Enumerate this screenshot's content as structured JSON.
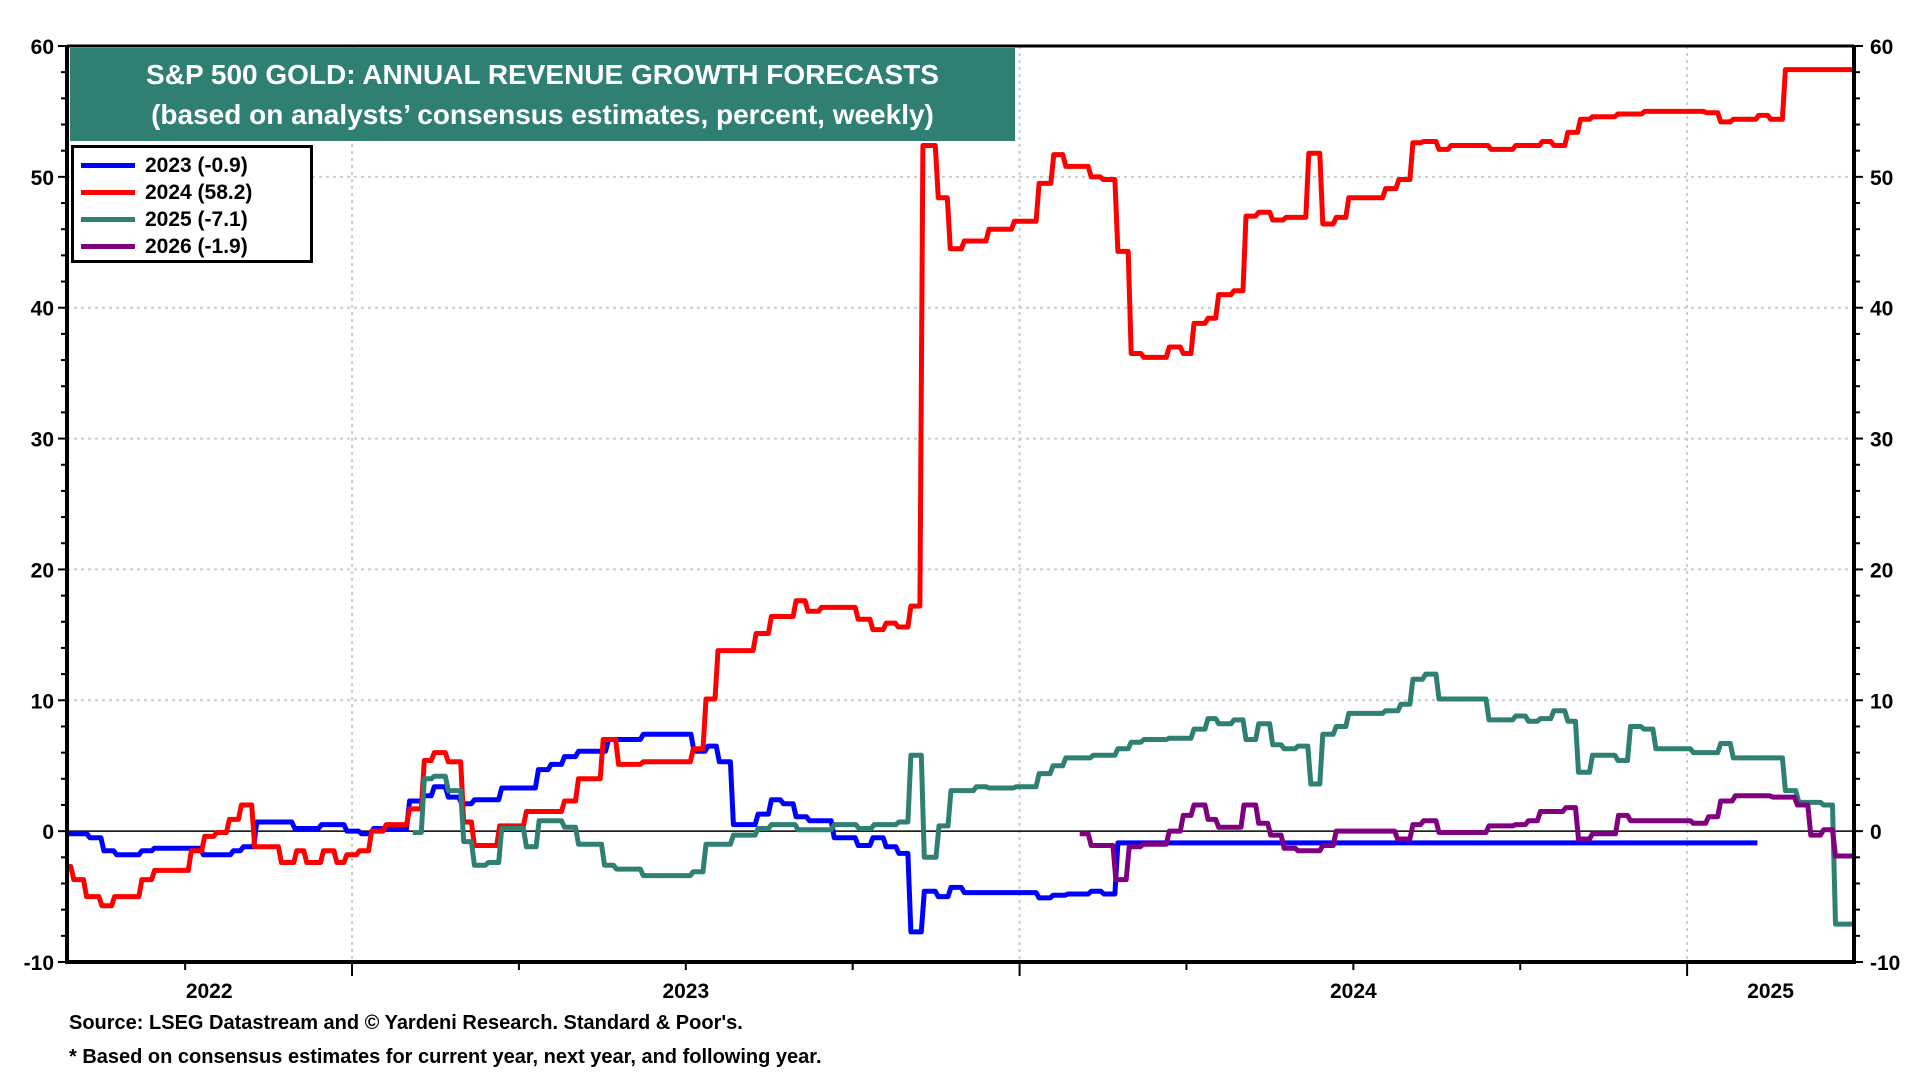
{
  "chart_data": {
    "type": "line",
    "title": "S&P 500 GOLD: ANNUAL REVENUE GROWTH FORECASTS",
    "subtitle": "(based on analysts’ consensus estimates, percent, weekly)",
    "xlabel": "",
    "ylabel": "",
    "x_unit": "decimal year",
    "xlim": [
      2022.573,
      2025.25
    ],
    "ylim": [
      -10,
      60
    ],
    "y_ticks": [
      -10,
      0,
      10,
      20,
      30,
      40,
      50,
      60
    ],
    "y_tick_labels": [
      "-10",
      "0",
      "10",
      "20",
      "30",
      "40",
      "50",
      "60"
    ],
    "y_minor_step": 2,
    "x_year_boundaries": [
      2023,
      2024,
      2025
    ],
    "x_tick_labels": [
      {
        "label": "2022",
        "at": 2022.786
      },
      {
        "label": "2023",
        "at": 2023.5
      },
      {
        "label": "2024",
        "at": 2024.5
      },
      {
        "label": "2025",
        "at": 2025.125
      }
    ],
    "x_minor_ticks": [
      2022.75,
      2023.25,
      2023.5,
      2023.75,
      2024.25,
      2024.5,
      2024.75
    ],
    "grid": true,
    "zero_line": true,
    "dual_y_axis": true,
    "legend_position": "top-left",
    "series": [
      {
        "name": "2023",
        "legend": "2023 (-0.9)",
        "last_value": -0.9,
        "color": "#0000ff",
        "points": [
          [
            2022.573,
            -0.2
          ],
          [
            2022.605,
            -0.5
          ],
          [
            2022.626,
            -1.5
          ],
          [
            2022.645,
            -1.8
          ],
          [
            2022.683,
            -1.5
          ],
          [
            2022.702,
            -1.3
          ],
          [
            2022.775,
            -1.8
          ],
          [
            2022.82,
            -1.5
          ],
          [
            2022.835,
            -1.2
          ],
          [
            2022.855,
            0.7
          ],
          [
            2022.912,
            0.2
          ],
          [
            2022.952,
            0.5
          ],
          [
            2022.99,
            0.0
          ],
          [
            2023.012,
            -0.2
          ],
          [
            2023.03,
            0.2
          ],
          [
            2023.084,
            2.3
          ],
          [
            2023.106,
            2.7
          ],
          [
            2023.121,
            3.4
          ],
          [
            2023.142,
            2.6
          ],
          [
            2023.162,
            2.1
          ],
          [
            2023.181,
            2.4
          ],
          [
            2023.222,
            3.3
          ],
          [
            2023.277,
            4.7
          ],
          [
            2023.296,
            5.1
          ],
          [
            2023.316,
            5.7
          ],
          [
            2023.337,
            6.1
          ],
          [
            2023.382,
            7.0
          ],
          [
            2023.434,
            7.4
          ],
          [
            2023.51,
            6.1
          ],
          [
            2023.531,
            6.5
          ],
          [
            2023.548,
            5.3
          ],
          [
            2023.569,
            0.5
          ],
          [
            2023.606,
            1.3
          ],
          [
            2023.626,
            2.4
          ],
          [
            2023.644,
            2.1
          ],
          [
            2023.663,
            1.1
          ],
          [
            2023.683,
            0.8
          ],
          [
            2023.72,
            -0.5
          ],
          [
            2023.756,
            -1.1
          ],
          [
            2023.778,
            -0.5
          ],
          [
            2023.798,
            -1.2
          ],
          [
            2023.817,
            -1.7
          ],
          [
            2023.835,
            -7.7
          ],
          [
            2023.855,
            -4.6
          ],
          [
            2023.876,
            -5.0
          ],
          [
            2023.895,
            -4.3
          ],
          [
            2023.915,
            -4.7
          ],
          [
            2024.027,
            -5.1
          ],
          [
            2024.048,
            -4.9
          ],
          [
            2024.07,
            -4.8
          ],
          [
            2024.105,
            -4.6
          ],
          [
            2024.124,
            -4.8
          ],
          [
            2024.145,
            -0.9
          ],
          [
            2025.103,
            -0.9
          ]
        ]
      },
      {
        "name": "2024",
        "legend": "2024 (58.2)",
        "last_value": 58.2,
        "color": "#ff0000",
        "points": [
          [
            2022.573,
            -2.7
          ],
          [
            2022.581,
            -3.7
          ],
          [
            2022.6,
            -5.0
          ],
          [
            2022.623,
            -5.7
          ],
          [
            2022.642,
            -5.0
          ],
          [
            2022.683,
            -3.7
          ],
          [
            2022.702,
            -3.0
          ],
          [
            2022.757,
            -1.5
          ],
          [
            2022.777,
            -0.4
          ],
          [
            2022.795,
            -0.1
          ],
          [
            2022.814,
            0.9
          ],
          [
            2022.832,
            2.0
          ],
          [
            2022.852,
            -1.2
          ],
          [
            2022.892,
            -2.4
          ],
          [
            2022.915,
            -1.5
          ],
          [
            2022.93,
            -2.4
          ],
          [
            2022.955,
            -1.5
          ],
          [
            2022.975,
            -2.4
          ],
          [
            2022.99,
            -1.8
          ],
          [
            2023.009,
            -1.5
          ],
          [
            2023.027,
            0.0
          ],
          [
            2023.049,
            0.5
          ],
          [
            2023.084,
            1.7
          ],
          [
            2023.106,
            5.4
          ],
          [
            2023.121,
            6.0
          ],
          [
            2023.142,
            5.3
          ],
          [
            2023.165,
            0.7
          ],
          [
            2023.181,
            -1.1
          ],
          [
            2023.219,
            0.4
          ],
          [
            2023.259,
            1.5
          ],
          [
            2023.316,
            2.3
          ],
          [
            2023.337,
            4.0
          ],
          [
            2023.374,
            7.0
          ],
          [
            2023.397,
            5.1
          ],
          [
            2023.434,
            5.3
          ],
          [
            2023.509,
            6.3
          ],
          [
            2023.528,
            10.1
          ],
          [
            2023.546,
            13.8
          ],
          [
            2023.603,
            15.1
          ],
          [
            2023.626,
            16.4
          ],
          [
            2023.663,
            17.6
          ],
          [
            2023.681,
            16.8
          ],
          [
            2023.701,
            17.1
          ],
          [
            2023.756,
            16.2
          ],
          [
            2023.778,
            15.4
          ],
          [
            2023.798,
            15.9
          ],
          [
            2023.816,
            15.6
          ],
          [
            2023.835,
            17.2
          ],
          [
            2023.853,
            52.4
          ],
          [
            2023.876,
            48.4
          ],
          [
            2023.894,
            44.5
          ],
          [
            2023.915,
            45.1
          ],
          [
            2023.952,
            46.0
          ],
          [
            2023.99,
            46.6
          ],
          [
            2024.027,
            49.5
          ],
          [
            2024.049,
            51.7
          ],
          [
            2024.067,
            50.8
          ],
          [
            2024.105,
            50.0
          ],
          [
            2024.123,
            49.8
          ],
          [
            2024.145,
            44.3
          ],
          [
            2024.165,
            36.5
          ],
          [
            2024.184,
            36.2
          ],
          [
            2024.222,
            37.0
          ],
          [
            2024.243,
            36.5
          ],
          [
            2024.259,
            38.8
          ],
          [
            2024.28,
            39.2
          ],
          [
            2024.296,
            41.0
          ],
          [
            2024.319,
            41.3
          ],
          [
            2024.337,
            47.0
          ],
          [
            2024.356,
            47.3
          ],
          [
            2024.377,
            46.7
          ],
          [
            2024.397,
            46.9
          ],
          [
            2024.431,
            51.8
          ],
          [
            2024.452,
            46.4
          ],
          [
            2024.472,
            46.9
          ],
          [
            2024.491,
            48.4
          ],
          [
            2024.546,
            49.1
          ],
          [
            2024.566,
            49.8
          ],
          [
            2024.587,
            52.6
          ],
          [
            2024.603,
            52.7
          ],
          [
            2024.626,
            52.1
          ],
          [
            2024.644,
            52.4
          ],
          [
            2024.704,
            52.1
          ],
          [
            2024.741,
            52.4
          ],
          [
            2024.781,
            52.7
          ],
          [
            2024.798,
            52.4
          ],
          [
            2024.819,
            53.4
          ],
          [
            2024.838,
            54.4
          ],
          [
            2024.856,
            54.6
          ],
          [
            2024.894,
            54.8
          ],
          [
            2024.934,
            55.0
          ],
          [
            2025.027,
            54.9
          ],
          [
            2025.048,
            54.2
          ],
          [
            2025.067,
            54.4
          ],
          [
            2025.105,
            54.7
          ],
          [
            2025.123,
            54.4
          ],
          [
            2025.145,
            58.2
          ],
          [
            2025.247,
            58.2
          ]
        ]
      },
      {
        "name": "2025",
        "legend": "2025 (-7.1)",
        "last_value": -7.1,
        "color": "#2f7f73",
        "points": [
          [
            2023.091,
            -0.1
          ],
          [
            2023.106,
            4.0
          ],
          [
            2023.121,
            4.2
          ],
          [
            2023.142,
            3.1
          ],
          [
            2023.165,
            -0.8
          ],
          [
            2023.181,
            -2.6
          ],
          [
            2023.202,
            -2.4
          ],
          [
            2023.222,
            0.2
          ],
          [
            2023.259,
            -1.2
          ],
          [
            2023.278,
            0.8
          ],
          [
            2023.316,
            0.3
          ],
          [
            2023.337,
            -1.0
          ],
          [
            2023.376,
            -2.6
          ],
          [
            2023.394,
            -2.9
          ],
          [
            2023.434,
            -3.4
          ],
          [
            2023.509,
            -3.1
          ],
          [
            2023.528,
            -1.0
          ],
          [
            2023.569,
            -0.3
          ],
          [
            2023.606,
            0.2
          ],
          [
            2023.626,
            0.5
          ],
          [
            2023.666,
            0.1
          ],
          [
            2023.72,
            0.5
          ],
          [
            2023.757,
            0.2
          ],
          [
            2023.78,
            0.5
          ],
          [
            2023.817,
            0.7
          ],
          [
            2023.835,
            5.8
          ],
          [
            2023.855,
            -2.0
          ],
          [
            2023.877,
            0.4
          ],
          [
            2023.895,
            3.1
          ],
          [
            2023.933,
            3.4
          ],
          [
            2023.952,
            3.3
          ],
          [
            2023.993,
            3.4
          ],
          [
            2024.027,
            4.4
          ],
          [
            2024.048,
            5.0
          ],
          [
            2024.067,
            5.6
          ],
          [
            2024.108,
            5.8
          ],
          [
            2024.145,
            6.3
          ],
          [
            2024.165,
            6.8
          ],
          [
            2024.184,
            7.0
          ],
          [
            2024.222,
            7.1
          ],
          [
            2024.259,
            7.8
          ],
          [
            2024.28,
            8.6
          ],
          [
            2024.296,
            8.2
          ],
          [
            2024.319,
            8.5
          ],
          [
            2024.337,
            7.0
          ],
          [
            2024.356,
            8.2
          ],
          [
            2024.377,
            6.6
          ],
          [
            2024.394,
            6.3
          ],
          [
            2024.415,
            6.5
          ],
          [
            2024.434,
            3.6
          ],
          [
            2024.452,
            7.4
          ],
          [
            2024.472,
            8.0
          ],
          [
            2024.491,
            9.0
          ],
          [
            2024.546,
            9.2
          ],
          [
            2024.569,
            9.7
          ],
          [
            2024.587,
            11.6
          ],
          [
            2024.606,
            12.0
          ],
          [
            2024.626,
            10.1
          ],
          [
            2024.701,
            8.5
          ],
          [
            2024.741,
            8.8
          ],
          [
            2024.76,
            8.4
          ],
          [
            2024.778,
            8.6
          ],
          [
            2024.798,
            9.2
          ],
          [
            2024.819,
            8.4
          ],
          [
            2024.835,
            4.5
          ],
          [
            2024.856,
            5.8
          ],
          [
            2024.894,
            5.4
          ],
          [
            2024.913,
            8.0
          ],
          [
            2024.933,
            7.8
          ],
          [
            2024.951,
            6.3
          ],
          [
            2025.007,
            6.0
          ],
          [
            2025.048,
            6.7
          ],
          [
            2025.067,
            5.6
          ],
          [
            2025.145,
            3.1
          ],
          [
            2025.165,
            2.2
          ],
          [
            2025.202,
            2.0
          ],
          [
            2025.22,
            -7.1
          ],
          [
            2025.247,
            -7.1
          ]
        ]
      },
      {
        "name": "2026",
        "legend": "2026 (-1.9)",
        "last_value": -1.9,
        "color": "#800080",
        "points": [
          [
            2024.09,
            -0.2
          ],
          [
            2024.105,
            -1.1
          ],
          [
            2024.142,
            -3.7
          ],
          [
            2024.162,
            -1.2
          ],
          [
            2024.183,
            -1.0
          ],
          [
            2024.222,
            0.0
          ],
          [
            2024.243,
            1.2
          ],
          [
            2024.259,
            2.0
          ],
          [
            2024.28,
            0.9
          ],
          [
            2024.296,
            0.3
          ],
          [
            2024.334,
            2.0
          ],
          [
            2024.356,
            0.6
          ],
          [
            2024.374,
            -0.3
          ],
          [
            2024.394,
            -1.3
          ],
          [
            2024.415,
            -1.5
          ],
          [
            2024.452,
            -1.1
          ],
          [
            2024.472,
            0.0
          ],
          [
            2024.564,
            -0.6
          ],
          [
            2024.587,
            0.5
          ],
          [
            2024.603,
            0.8
          ],
          [
            2024.626,
            -0.1
          ],
          [
            2024.701,
            0.4
          ],
          [
            2024.741,
            0.5
          ],
          [
            2024.76,
            0.8
          ],
          [
            2024.778,
            1.5
          ],
          [
            2024.816,
            1.8
          ],
          [
            2024.835,
            -0.6
          ],
          [
            2024.856,
            -0.2
          ],
          [
            2024.895,
            1.2
          ],
          [
            2024.913,
            0.8
          ],
          [
            2025.007,
            0.6
          ],
          [
            2025.03,
            1.1
          ],
          [
            2025.048,
            2.3
          ],
          [
            2025.07,
            2.7
          ],
          [
            2025.126,
            2.6
          ],
          [
            2025.163,
            2.0
          ],
          [
            2025.183,
            -0.3
          ],
          [
            2025.202,
            0.1
          ],
          [
            2025.22,
            -1.9
          ],
          [
            2025.247,
            -1.9
          ]
        ]
      }
    ],
    "source": "Source: LSEG Datastream and © Yardeni Research. Standard & Poor's.",
    "footnote": "* Based on consensus estimates for current year, next year, and following year."
  },
  "colors": {
    "title_background": "#2f7f73",
    "title_text": "#ffffff",
    "grid": "#cccccc",
    "axis": "#000000"
  }
}
